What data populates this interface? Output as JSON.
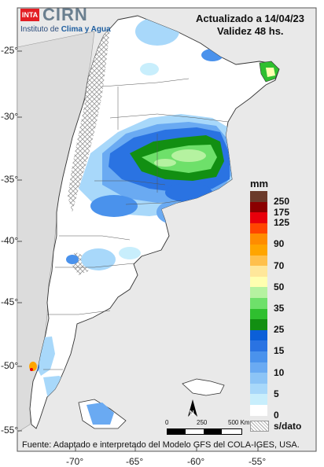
{
  "header": {
    "logo_inta": "INTA",
    "logo_cirn": "CIRN",
    "logo_sub_prefix": "Instituto de ",
    "logo_sub_bold": "Clima y Agua",
    "updated": "Actualizado a 14/04/23",
    "validity": "Validez 48 hs."
  },
  "axes": {
    "lat_labels": [
      "-25°",
      "-30°",
      "-35°",
      "-40°",
      "-45°",
      "-50°",
      "-55°"
    ],
    "lon_labels": [
      "-70°",
      "-65°",
      "-60°",
      "-55°"
    ]
  },
  "legend": {
    "unit": "mm",
    "entries": [
      {
        "label": "250",
        "color": "#6b3a2a"
      },
      {
        "label": "175",
        "color": "#8b0000"
      },
      {
        "label": "125",
        "color": "#e8000b"
      },
      {
        "label": "",
        "color": "#ff4500"
      },
      {
        "label": "90",
        "color": "#ff8c00"
      },
      {
        "label": "",
        "color": "#ffa500"
      },
      {
        "label": "70",
        "color": "#ffc04c"
      },
      {
        "label": "",
        "color": "#ffe79a"
      },
      {
        "label": "50",
        "color": "#ffffb0"
      },
      {
        "label": "",
        "color": "#b5f2a0"
      },
      {
        "label": "35",
        "color": "#6ee06a"
      },
      {
        "label": "",
        "color": "#2fbf2f"
      },
      {
        "label": "25",
        "color": "#128f12"
      },
      {
        "label": "",
        "color": "#0b5fd8"
      },
      {
        "label": "15",
        "color": "#2a73e2"
      },
      {
        "label": "",
        "color": "#4a92ec"
      },
      {
        "label": "10",
        "color": "#6aaaf2"
      },
      {
        "label": "",
        "color": "#8cc4f6"
      },
      {
        "label": "5",
        "color": "#a8d8fa"
      },
      {
        "label": "",
        "color": "#c8eefc"
      },
      {
        "label": "0",
        "color": "#ffffff"
      },
      {
        "label": "s/dato",
        "color": "hatch"
      }
    ]
  },
  "scale_bar": {
    "labels": [
      "0",
      "250",
      "500 Km"
    ]
  },
  "north_label": "N",
  "footer": "Fuente: Adaptado e interpretado del Modelo GFS del COLA-IGES, USA."
}
